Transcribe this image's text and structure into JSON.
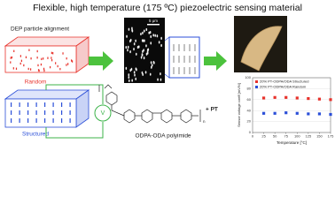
{
  "header": {
    "title": "Flexible, high temperature (175 ºC) piezoelectric sensing material"
  },
  "left": {
    "process": "DEP particle alignment",
    "random": "Random",
    "structured": "Structured",
    "source": "V"
  },
  "middle": {
    "scale_bar": "5 μm",
    "polymer": "ODPA-ODA polyimide",
    "additive": "+ PT",
    "repeat": "n"
  },
  "chart": {
    "type": "line",
    "x_label": "Temperature [°C]",
    "y_label": "Sensor voltage coeff [mV/N]",
    "x": [
      25,
      50,
      75,
      100,
      125,
      150,
      175
    ],
    "xlim": [
      0,
      175
    ],
    "xticks": [
      0,
      25,
      50,
      75,
      100,
      125,
      150,
      175
    ],
    "ylim": [
      0,
      100
    ],
    "yticks": [
      0,
      20,
      40,
      60,
      80,
      100
    ],
    "grid": true,
    "series": [
      {
        "name": "20% PT-ODPA/ODA Structured",
        "color": "#e8322b",
        "values": [
          63,
          64,
          64,
          63,
          62,
          61,
          60
        ]
      },
      {
        "name": "20% PT-ODPA/ODA Random",
        "color": "#2b4fd8",
        "values": [
          35,
          35,
          36,
          35,
          34,
          34,
          33
        ]
      }
    ]
  }
}
